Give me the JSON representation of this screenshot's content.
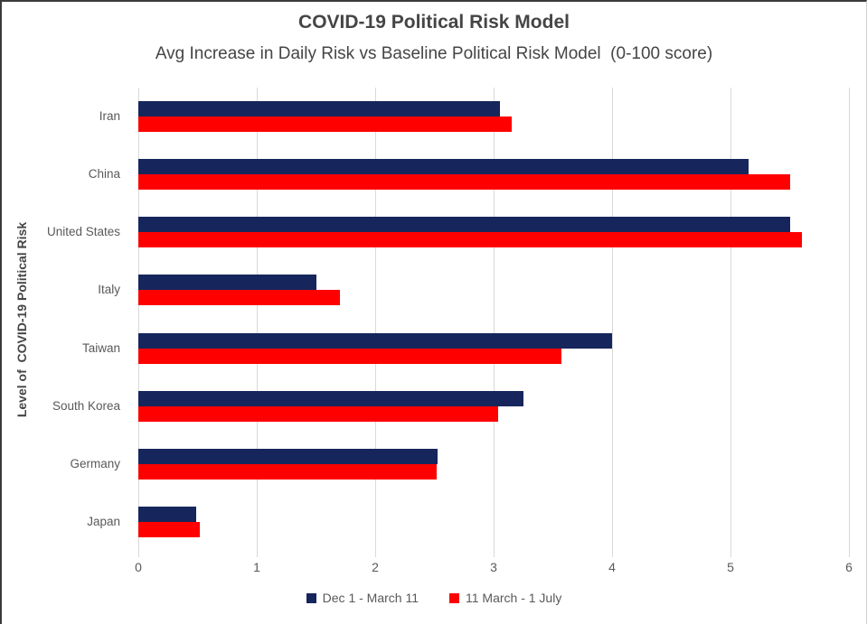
{
  "chart_data": {
    "type": "bar",
    "orientation": "horizontal",
    "title": "COVID-19 Political Risk Model",
    "subtitle": "Avg Increase in Daily Risk vs Baseline Political Risk Model  (0-100 score)",
    "ylabel": "Level of  COVID-19 Political Risk",
    "xlabel": "",
    "categories": [
      "Iran",
      "China",
      "United States",
      "Italy",
      "Taiwan",
      "South Korea",
      "Germany",
      "Japan"
    ],
    "series": [
      {
        "name": "Dec 1 - March 11",
        "color": "#16265c",
        "values": [
          3.05,
          5.15,
          5.5,
          1.5,
          4.0,
          3.25,
          2.53,
          0.49
        ]
      },
      {
        "name": "11 March - 1 July",
        "color": "#fe0000",
        "values": [
          3.15,
          5.5,
          5.6,
          1.7,
          3.57,
          3.04,
          2.52,
          0.52
        ]
      }
    ],
    "x_ticks": [
      0,
      1,
      2,
      3,
      4,
      5,
      6
    ],
    "xlim": [
      0,
      6
    ],
    "grid": true,
    "gridline_color": "#d9d9d9",
    "legend_position": "bottom"
  },
  "colors": {
    "title_text": "#454545",
    "axis_text": "#595959",
    "background": "#ffffff"
  }
}
